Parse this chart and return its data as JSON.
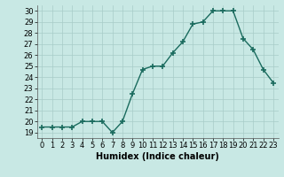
{
  "x": [
    0,
    1,
    2,
    3,
    4,
    5,
    6,
    7,
    8,
    9,
    10,
    11,
    12,
    13,
    14,
    15,
    16,
    17,
    18,
    19,
    20,
    21,
    22,
    23
  ],
  "y": [
    19.5,
    19.5,
    19.5,
    19.5,
    20.0,
    20.0,
    20.0,
    19.0,
    20.0,
    22.5,
    24.7,
    25.0,
    25.0,
    26.2,
    27.2,
    28.8,
    29.0,
    30.0,
    30.0,
    30.0,
    27.5,
    26.5,
    24.7,
    23.5
  ],
  "line_color": "#1a6b5e",
  "marker": "+",
  "marker_size": 4,
  "bg_color": "#c8e8e4",
  "grid_color": "#a8ccc8",
  "xlabel": "Humidex (Indice chaleur)",
  "ylim": [
    18.5,
    30.5
  ],
  "xlim": [
    -0.5,
    23.5
  ],
  "yticks": [
    19,
    20,
    21,
    22,
    23,
    24,
    25,
    26,
    27,
    28,
    29,
    30
  ],
  "xticks": [
    0,
    1,
    2,
    3,
    4,
    5,
    6,
    7,
    8,
    9,
    10,
    11,
    12,
    13,
    14,
    15,
    16,
    17,
    18,
    19,
    20,
    21,
    22,
    23
  ],
  "tick_fontsize": 6,
  "label_fontsize": 7,
  "lw": 1.0
}
